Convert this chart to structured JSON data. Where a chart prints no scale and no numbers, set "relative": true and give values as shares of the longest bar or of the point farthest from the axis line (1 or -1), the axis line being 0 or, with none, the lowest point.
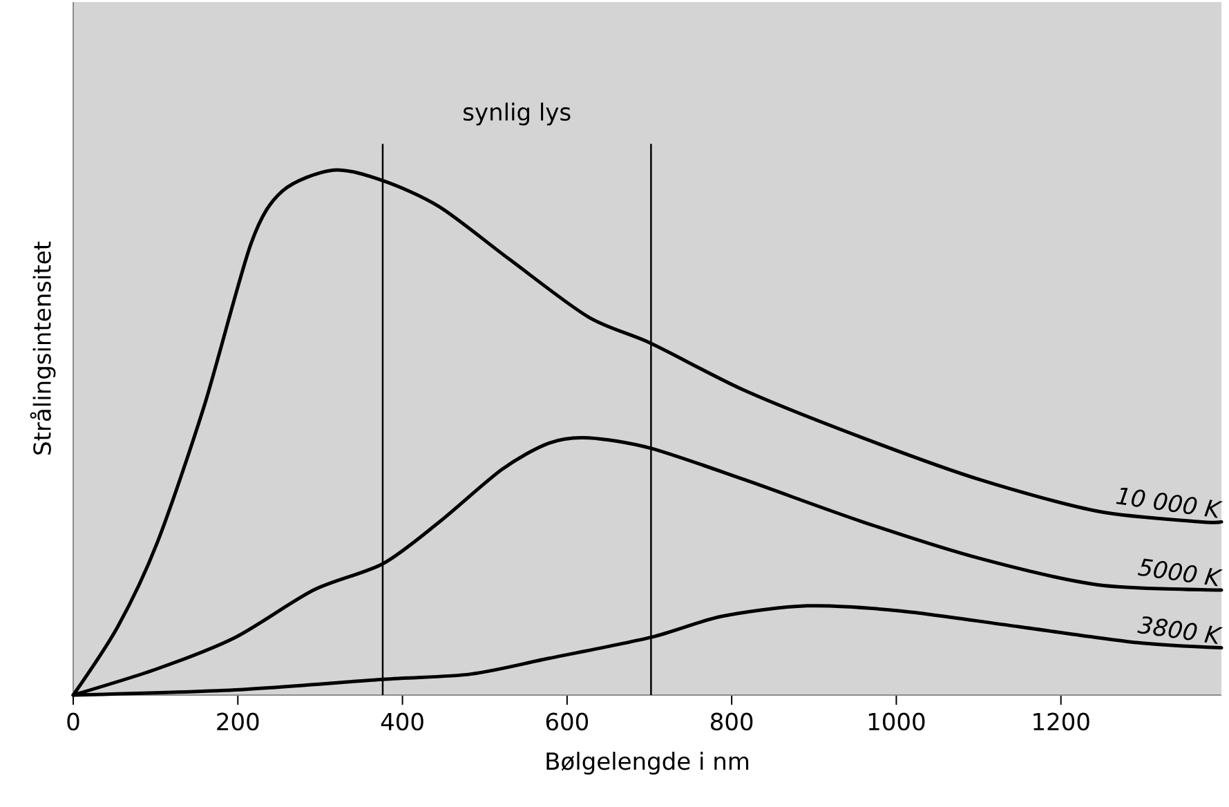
{
  "chart_data": {
    "type": "line",
    "relative": true,
    "xlabel": "Bølgelengde i nm",
    "ylabel": "Strålingsintensitet",
    "xlim": [
      0,
      1395
    ],
    "xticks": [
      0,
      200,
      400,
      600,
      800,
      1000,
      1200
    ],
    "marker": "none",
    "line_style": "solid",
    "grid": false,
    "legend": false,
    "ref_lines": [
      {
        "axis": "x",
        "value": 376
      },
      {
        "axis": "x",
        "value": 702
      }
    ],
    "annotations": [
      "synlig lys"
    ],
    "series": [
      {
        "name": "10 000 K",
        "color": "#000000",
        "x": [
          0,
          54,
          102,
          159,
          216,
          254,
          316,
          376,
          445,
          530,
          626,
          702,
          816,
          959,
          1102,
          1245,
          1369,
          1395
        ],
        "values": [
          0,
          0.13,
          0.29,
          0.55,
          0.86,
          0.96,
          1.0,
          0.98,
          0.93,
          0.83,
          0.72,
          0.67,
          0.58,
          0.49,
          0.41,
          0.35,
          0.33,
          0.33
        ]
      },
      {
        "name": "5000 K",
        "color": "#000000",
        "x": [
          0,
          102,
          197,
          292,
          376,
          445,
          521,
          578,
          626,
          702,
          816,
          959,
          1102,
          1245,
          1395
        ],
        "values": [
          0,
          0.05,
          0.11,
          0.2,
          0.25,
          0.33,
          0.43,
          0.48,
          0.49,
          0.47,
          0.41,
          0.33,
          0.26,
          0.21,
          0.2
        ]
      },
      {
        "name": "3800 K",
        "color": "#000000",
        "x": [
          0,
          197,
          376,
          483,
          578,
          702,
          788,
          892,
          1007,
          1150,
          1292,
          1395
        ],
        "values": [
          0,
          0.01,
          0.03,
          0.04,
          0.07,
          0.11,
          0.15,
          0.17,
          0.16,
          0.13,
          0.1,
          0.09
        ]
      }
    ]
  }
}
